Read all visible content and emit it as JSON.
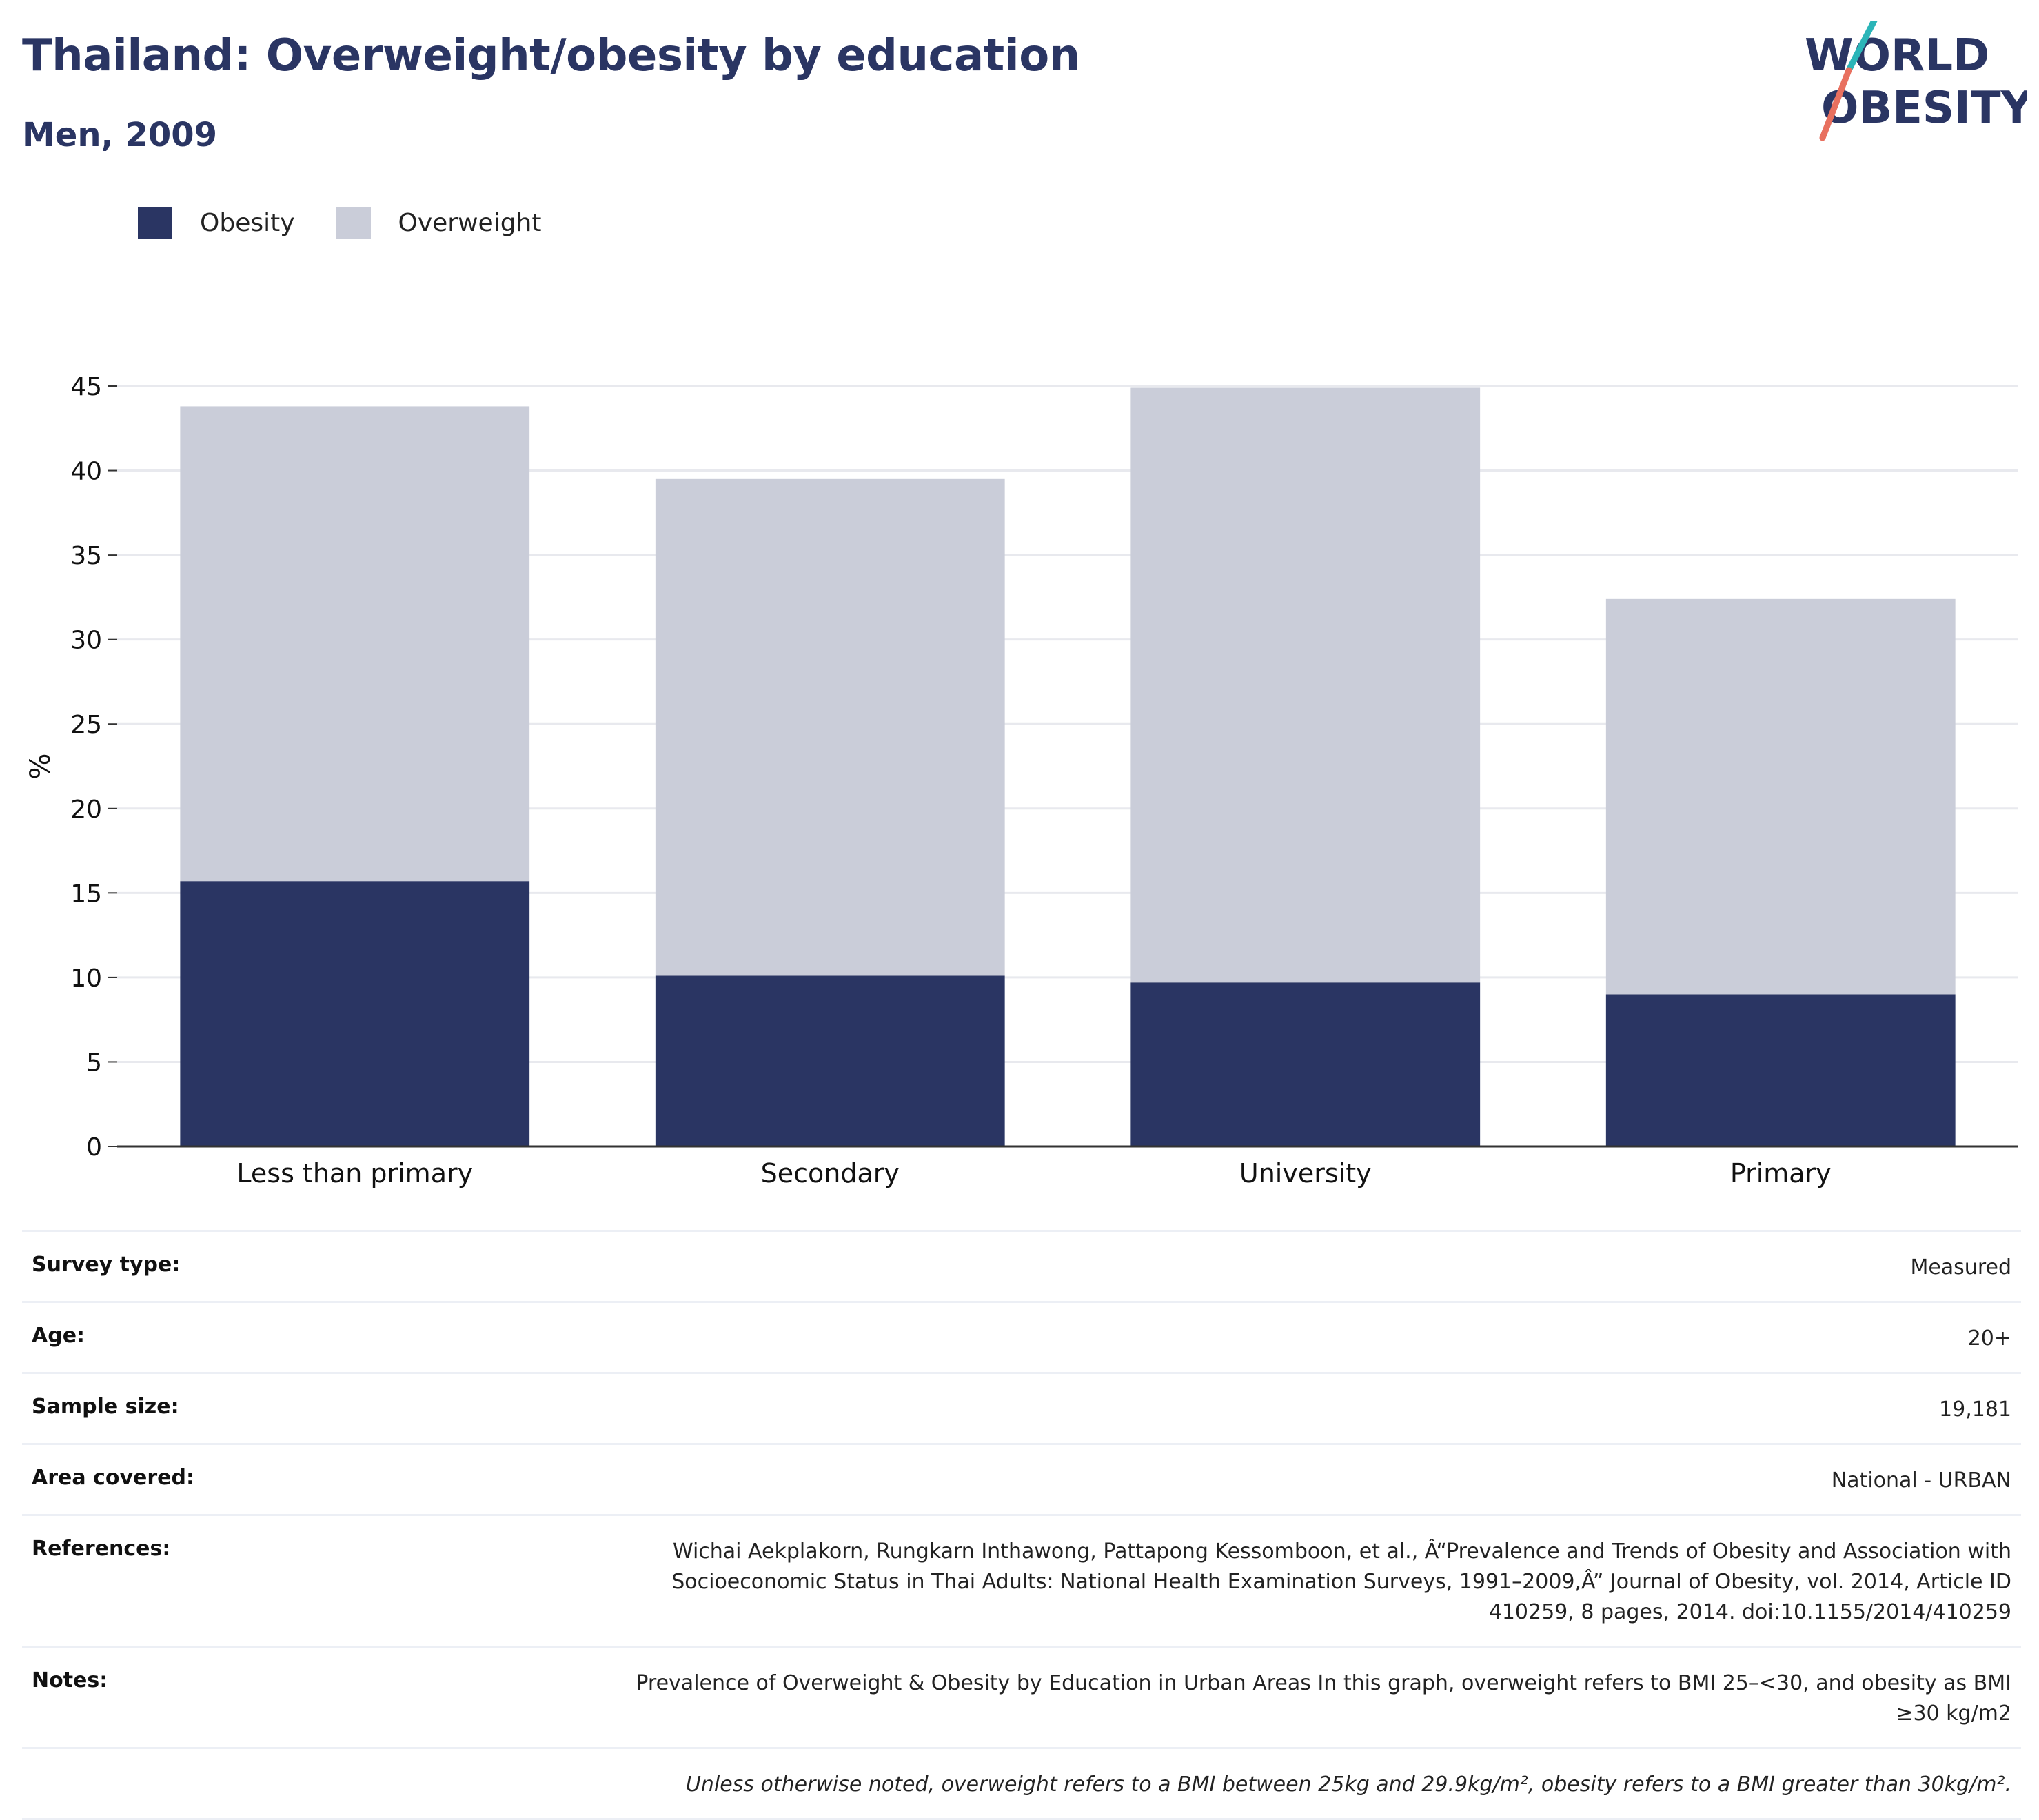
{
  "header": {
    "title": "Thailand: Overweight/obesity by education",
    "subtitle": "Men, 2009",
    "logo_line1": "WORLD",
    "logo_line2": "OBESITY"
  },
  "legend": {
    "items": [
      {
        "label": "Obesity",
        "color": "#2a3563"
      },
      {
        "label": "Overweight",
        "color": "#cacdd9"
      }
    ]
  },
  "chart_data": {
    "type": "bar",
    "stacked": true,
    "categories": [
      "Less than primary",
      "Secondary",
      "University",
      "Primary"
    ],
    "series": [
      {
        "name": "Obesity",
        "color": "#2a3563",
        "values": [
          15.7,
          10.1,
          9.7,
          9.0
        ]
      },
      {
        "name": "Overweight",
        "color": "#cacdd9",
        "values": [
          28.1,
          29.4,
          35.2,
          23.4
        ]
      }
    ],
    "ylabel": "%",
    "ylim": [
      0,
      45
    ],
    "yticks": [
      0,
      5,
      10,
      15,
      20,
      25,
      30,
      35,
      40,
      45
    ],
    "grid": true,
    "legend_position": "top-left"
  },
  "info_table": {
    "rows": [
      {
        "key": "Survey type:",
        "value": "Measured"
      },
      {
        "key": "Age:",
        "value": "20+"
      },
      {
        "key": "Sample size:",
        "value": "19,181"
      },
      {
        "key": "Area covered:",
        "value": "National - URBAN"
      },
      {
        "key": "References:",
        "value": "Wichai Aekplakorn, Rungkarn Inthawong, Pattapong Kessomboon, et al., Â“Prevalence and Trends of Obesity and Association with Socioeconomic Status in Thai Adults: National Health Examination Surveys, 1991–2009,Â” Journal of Obesity, vol. 2014, Article ID 410259, 8 pages, 2014. doi:10.1155/2014/410259"
      },
      {
        "key": "Notes:",
        "value": "Prevalence of Overweight & Obesity by Education in Urban Areas In this graph, overweight refers to BMI 25–<30, and obesity as BMI ≥30 kg/m2"
      }
    ],
    "footnote": "Unless otherwise noted, overweight refers to a BMI between 25kg and 29.9kg/m², obesity refers to a BMI greater than 30kg/m²."
  }
}
